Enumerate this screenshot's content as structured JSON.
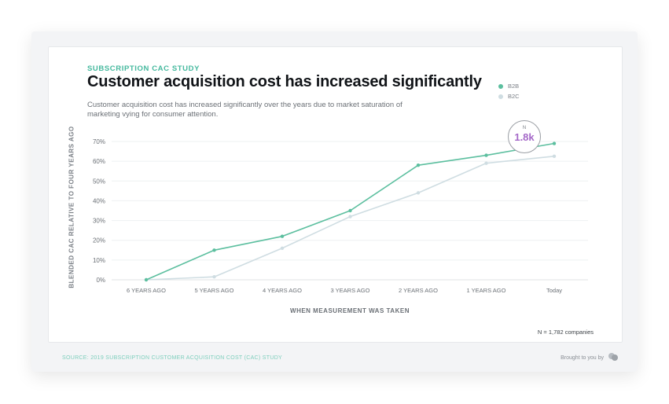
{
  "header": {
    "eyebrow": "SUBSCRIPTION CAC STUDY",
    "title": "Customer acquisition cost has increased significantly",
    "subtitle": "Customer acquisition cost has increased significantly over the years due to market saturation of marketing vying for consumer attention."
  },
  "callout": {
    "label": "N",
    "value": "1.8k"
  },
  "footer": {
    "sample_size": "N = 1,782 companies",
    "source": "SOURCE: 2019 SUBSCRIPTION CUSTOMER ACQUISITION COST (CAC) STUDY",
    "brand": "Brought to you by",
    "brand_logo_icon": "profitwell-logo-icon"
  },
  "colors": {
    "b2b": "#5cbf9f",
    "b2c": "#cfdde2",
    "callout_value": "#a569c8",
    "eyebrow": "#45b99e"
  },
  "chart_data": {
    "type": "line",
    "title": "Customer acquisition cost has increased significantly",
    "xlabel": "WHEN MEASUREMENT WAS TAKEN",
    "ylabel": "BLENDED CAC RELATIVE TO FOUR YEARS AGO",
    "categories": [
      "6 YEARS AGO",
      "5 YEARS AGO",
      "4 YEARS AGO",
      "3 YEARS AGO",
      "2 YEARS AGO",
      "1 YEARS AGO",
      "Today"
    ],
    "yticks": [
      "0%",
      "10%",
      "20%",
      "30%",
      "40%",
      "50%",
      "60%",
      "70%"
    ],
    "ylim": [
      0,
      70
    ],
    "grid": true,
    "legend": "top-right",
    "series": [
      {
        "name": "B2B",
        "values": [
          0,
          15,
          22,
          35,
          58,
          63,
          69
        ]
      },
      {
        "name": "B2C",
        "values": [
          0,
          1.5,
          16,
          32,
          44,
          59,
          62.5
        ]
      }
    ]
  }
}
